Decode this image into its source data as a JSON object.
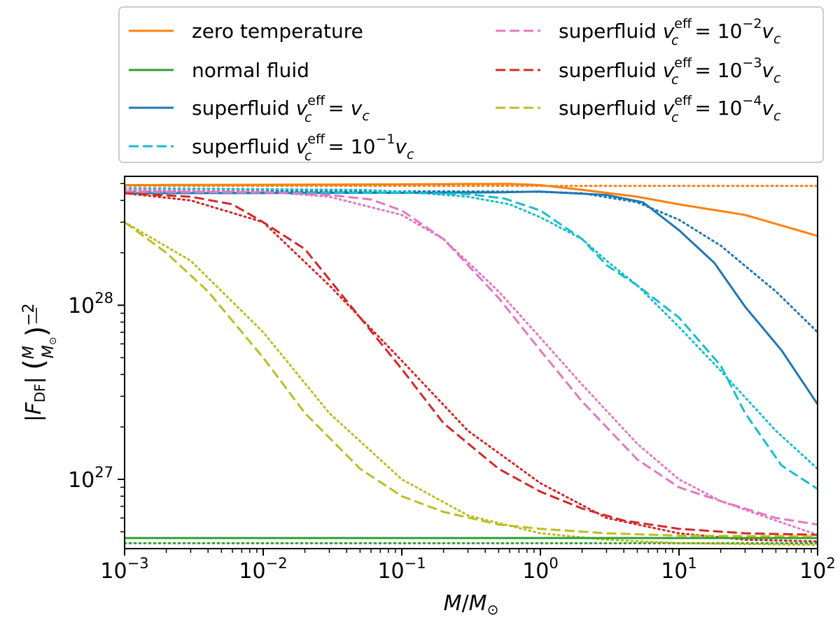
{
  "chart_data": {
    "type": "line",
    "title": "",
    "xlabel": "M/M⊙",
    "ylabel": "|F_DF| (M/M⊙)^−2",
    "xscale": "log",
    "yscale": "log",
    "xlim": [
      0.001,
      100
    ],
    "ylim": [
      4e+26,
      5.5e+28
    ],
    "x_ticks": [
      {
        "value": 0.001,
        "base": "10",
        "exp": "−3"
      },
      {
        "value": 0.01,
        "base": "10",
        "exp": "−2"
      },
      {
        "value": 0.1,
        "base": "10",
        "exp": "−1"
      },
      {
        "value": 1,
        "base": "10",
        "exp": "0"
      },
      {
        "value": 10,
        "base": "10",
        "exp": "1"
      },
      {
        "value": 100,
        "base": "10",
        "exp": "2"
      }
    ],
    "y_ticks": [
      {
        "value": 1e+27,
        "base": "10",
        "exp": "27"
      },
      {
        "value": 1e+28,
        "base": "10",
        "exp": "28"
      }
    ],
    "legend_position": "above",
    "legend_note": "dotted lines of the same color accompany each series",
    "series": [
      {
        "name": "zero temperature",
        "legend_label": "zero temperature",
        "color": "#ff7f0e",
        "style": "solid",
        "x": [
          0.001,
          0.01,
          0.1,
          0.3,
          0.6,
          1,
          2,
          5,
          10,
          30,
          100
        ],
        "y": [
          4.9e+28,
          4.92e+28,
          4.95e+28,
          4.97e+28,
          4.98e+28,
          4.9e+28,
          4.6e+28,
          4.2e+28,
          3.8e+28,
          3.3e+28,
          2.5e+28
        ],
        "approx": {
          "x": [
            0.001,
            100
          ],
          "y": [
            4.85e+28,
            4.85e+28
          ]
        }
      },
      {
        "name": "normal fluid",
        "legend_label": "normal fluid",
        "color": "#2ca02c",
        "style": "solid",
        "x": [
          0.001,
          100
        ],
        "y": [
          4.6e+26,
          4.6e+26
        ],
        "approx": {
          "x": [
            0.001,
            100
          ],
          "y": [
            4.3e+26,
            4.3e+26
          ]
        }
      },
      {
        "name": "superfluid v_c^eff = v_c",
        "legend_label": {
          "pre": "superfluid ",
          "v": "v",
          "sub": "c",
          "sup": "eff",
          "post": " = ",
          "coef": "",
          "exp": ""
        },
        "color": "#1f77b4",
        "style": "solid",
        "x": [
          0.001,
          0.1,
          0.5,
          1,
          3,
          5.5,
          10,
          18,
          30,
          55,
          100
        ],
        "y": [
          4.4e+28,
          4.42e+28,
          4.45e+28,
          4.5e+28,
          4.3e+28,
          3.9e+28,
          2.7e+28,
          1.75e+28,
          9.8e+27,
          5.5e+27,
          2.7e+27
        ],
        "approx": {
          "x": [
            0.001,
            0.5,
            1,
            2,
            5,
            10,
            20,
            50,
            100
          ],
          "y": [
            4.55e+28,
            4.5e+28,
            4.48e+28,
            4.4e+28,
            3.9e+28,
            3.1e+28,
            2.2e+28,
            1.2e+28,
            7e+27
          ]
        }
      },
      {
        "name": "superfluid v_c^eff = 10^-1 v_c",
        "legend_label": {
          "pre": "superfluid ",
          "v": "v",
          "sub": "c",
          "sup": "eff",
          "post": " = ",
          "coef": "10",
          "exp": "−1"
        },
        "color": "#17becf",
        "style": "dashed",
        "x": [
          0.001,
          0.1,
          0.3,
          0.55,
          1,
          2,
          3,
          5,
          10,
          20,
          30,
          55,
          100
        ],
        "y": [
          4.45e+28,
          4.43e+28,
          4.35e+28,
          4.1e+28,
          3.5e+28,
          2.4e+28,
          1.7e+28,
          1.3e+28,
          8.5e+27,
          4.5e+27,
          2.4e+27,
          1.2e+27,
          8.8e+26
        ],
        "approx": {
          "x": [
            0.001,
            0.05,
            0.1,
            0.3,
            0.6,
            1,
            2,
            3,
            5,
            10,
            20,
            50,
            100
          ],
          "y": [
            4.7e+28,
            4.6e+28,
            4.5e+28,
            4.2e+28,
            3.8e+28,
            3.2e+28,
            2.4e+28,
            1.8e+28,
            1.3e+28,
            7.5e+27,
            4.2e+27,
            1.9e+27,
            1.15e+27
          ]
        }
      },
      {
        "name": "superfluid v_c^eff = 10^-2 v_c",
        "legend_label": {
          "pre": "superfluid ",
          "v": "v",
          "sub": "c",
          "sup": "eff",
          "post": " = ",
          "coef": "10",
          "exp": "−2"
        },
        "color": "#e377c2",
        "style": "dashed",
        "x": [
          0.001,
          0.01,
          0.03,
          0.06,
          0.1,
          0.2,
          0.5,
          1,
          2,
          5,
          10,
          20,
          50,
          100
        ],
        "y": [
          4.5e+28,
          4.45e+28,
          4.3e+28,
          4.05e+28,
          3.5e+28,
          2.4e+28,
          1.1e+28,
          5.5e+27,
          2.8e+27,
          1.3e+27,
          9e+26,
          7.5e+26,
          6e+26,
          5.5e+26
        ],
        "approx": {
          "x": [
            0.001,
            0.01,
            0.03,
            0.1,
            0.2,
            0.5,
            1,
            2,
            5,
            10,
            20,
            50,
            100
          ],
          "y": [
            4.6e+28,
            4.5e+28,
            4.2e+28,
            3.3e+28,
            2.4e+28,
            1.2e+28,
            6.5e+27,
            3.5e+27,
            1.6e+27,
            1e+27,
            7.5e+26,
            5.8e+26,
            4.8e+26
          ]
        }
      },
      {
        "name": "superfluid v_c^eff = 10^-3 v_c",
        "legend_label": {
          "pre": "superfluid ",
          "v": "v",
          "sub": "c",
          "sup": "eff",
          "post": " = ",
          "coef": "10",
          "exp": "−3"
        },
        "color": "#d62728",
        "style": "dashed",
        "x": [
          0.001,
          0.003,
          0.006,
          0.01,
          0.02,
          0.05,
          0.1,
          0.2,
          0.5,
          1,
          2,
          4,
          10,
          30,
          100
        ],
        "y": [
          4.4e+28,
          4.2e+28,
          3.8e+28,
          3e+28,
          2.1e+28,
          8.5e+27,
          4.3e+27,
          2.1e+27,
          1.15e+27,
          8.5e+26,
          6.8e+26,
          5.8e+26,
          5.2e+26,
          4.9e+26,
          4.8e+26
        ],
        "approx": {
          "x": [
            0.001,
            0.003,
            0.01,
            0.03,
            0.1,
            0.3,
            1,
            3,
            10,
            30,
            100
          ],
          "y": [
            4.4e+28,
            4e+28,
            3e+28,
            1.3e+28,
            4.8e+27,
            1.9e+27,
            9.5e+26,
            6e+26,
            4.9e+26,
            4.5e+26,
            4.4e+26
          ]
        }
      },
      {
        "name": "superfluid v_c^eff = 10^-4 v_c",
        "legend_label": {
          "pre": "superfluid ",
          "v": "v",
          "sub": "c",
          "sup": "eff",
          "post": " = ",
          "coef": "10",
          "exp": "−4"
        },
        "color": "#bcbd22",
        "style": "dashed",
        "x": [
          0.001,
          0.002,
          0.004,
          0.01,
          0.02,
          0.05,
          0.1,
          0.2,
          0.5,
          1,
          3,
          10,
          100
        ],
        "y": [
          3e+28,
          2e+28,
          1.2e+28,
          5e+27,
          2.4e+27,
          1.15e+27,
          8e+26,
          6.5e+26,
          5.5e+26,
          5.2e+26,
          4.9e+26,
          4.75e+26,
          4.7e+26
        ],
        "approx": {
          "x": [
            0.001,
            0.003,
            0.01,
            0.03,
            0.1,
            0.3,
            1,
            3,
            10,
            100
          ],
          "y": [
            3e+28,
            1.8e+28,
            7e+27,
            2.4e+27,
            1e+27,
            6.2e+26,
            4.9e+26,
            4.5e+26,
            4.3e+26,
            4.2e+26
          ]
        }
      }
    ]
  }
}
